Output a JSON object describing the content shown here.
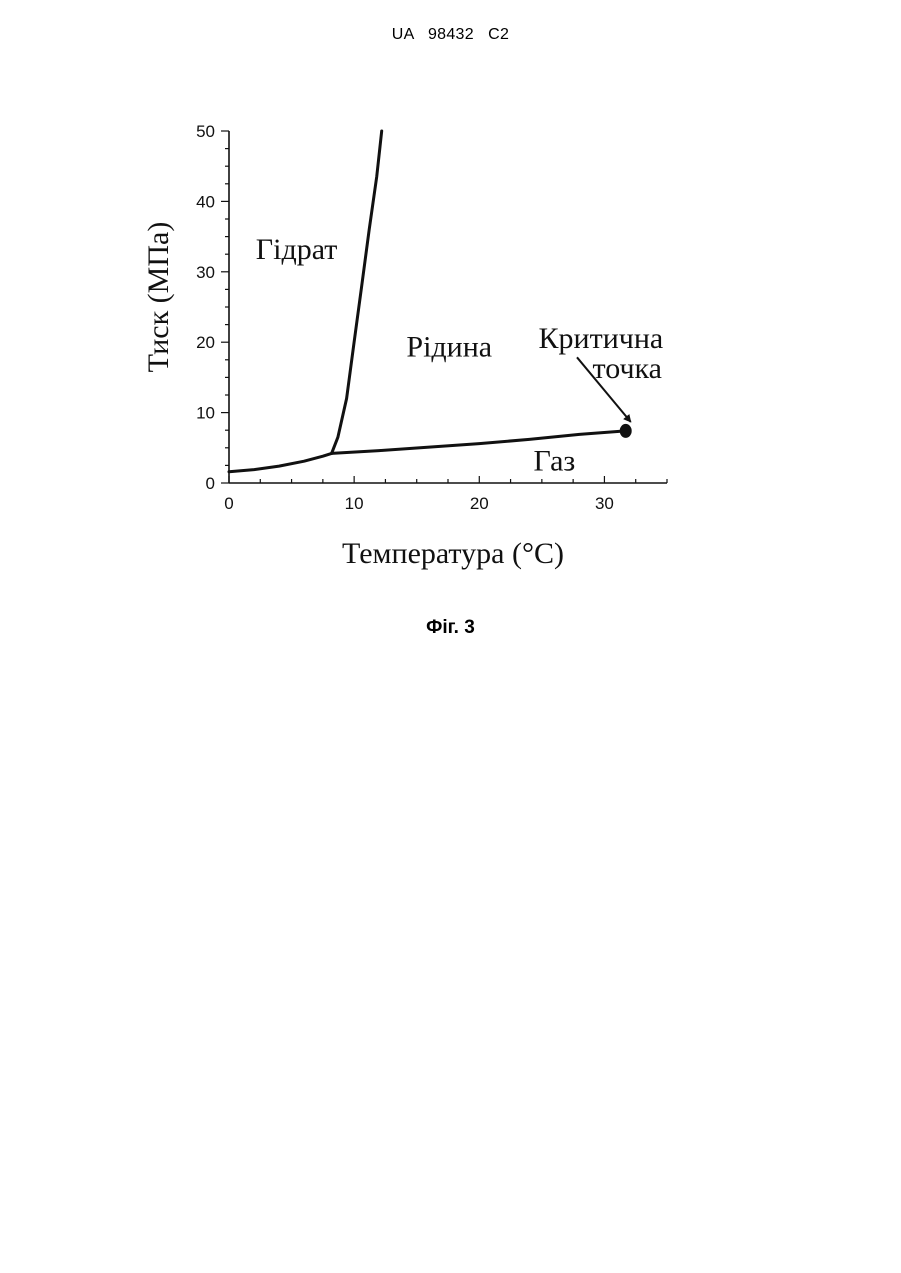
{
  "header": {
    "text": "UA   98432   C2"
  },
  "caption": {
    "text": "Фіг. 3"
  },
  "chart_data": {
    "type": "line",
    "title": "",
    "xlabel": "Температура (°С)",
    "ylabel": "Тиск (МПа)",
    "xlim": [
      0,
      35
    ],
    "ylim": [
      0,
      50
    ],
    "xticks": [
      "0",
      "10",
      "20",
      "30"
    ],
    "yticks": [
      "0",
      "10",
      "20",
      "30",
      "40",
      "50"
    ],
    "grid": false,
    "series": [
      {
        "x": [
          0,
          2,
          4,
          6,
          7.5,
          8.2
        ],
        "y": [
          1.6,
          1.9,
          2.4,
          3.1,
          3.8,
          4.2
        ]
      },
      {
        "x": [
          8.2,
          8.7,
          9.4,
          10.0,
          10.6,
          11.2,
          11.8,
          12.2
        ],
        "y": [
          4.2,
          6.5,
          12,
          20,
          28,
          36,
          43.5,
          50
        ]
      },
      {
        "x": [
          8.2,
          12,
          16,
          20,
          24,
          28,
          31.7
        ],
        "y": [
          4.2,
          4.6,
          5.1,
          5.6,
          6.2,
          6.9,
          7.4
        ]
      }
    ],
    "points": [
      {
        "x": 31.7,
        "y": 7.4
      }
    ],
    "annotations": [
      {
        "text": "Гідрат",
        "x": 5.4,
        "y": 31.8
      },
      {
        "text": "Рідина",
        "x": 17.6,
        "y": 18
      },
      {
        "text": "Газ",
        "x": 26,
        "y": 1.8
      },
      {
        "text": "Критична",
        "x": 34.7,
        "y": 19.2
      },
      {
        "text": "точка",
        "x": 34.6,
        "y": 14.9
      }
    ]
  }
}
